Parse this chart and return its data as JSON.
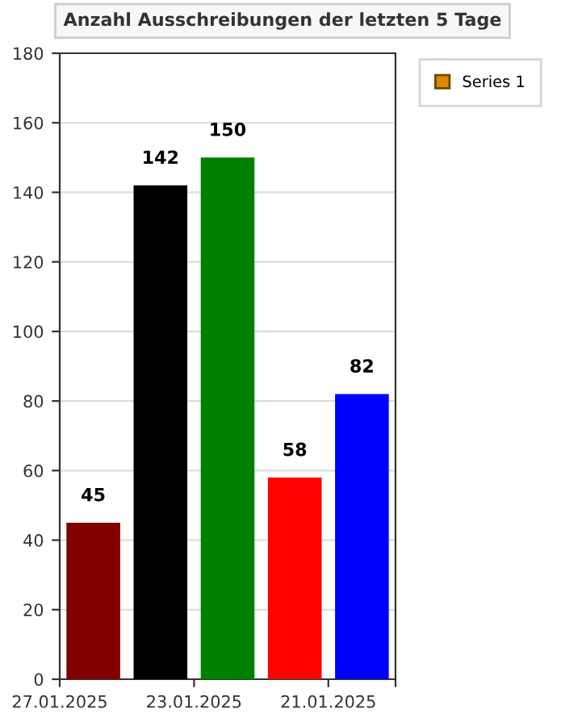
{
  "chart_data": {
    "type": "bar",
    "title": "Anzahl Ausschreibungen der letzten 5 Tage",
    "categories": [
      "27.01.2025",
      null,
      "23.01.2025",
      null,
      "21.01.2025"
    ],
    "series": [
      {
        "name": "Series 1",
        "color": "#dd8800",
        "colors": [
          "#800000",
          "#000000",
          "#008000",
          "#ff0000",
          "#0000ff"
        ],
        "values": [
          45,
          142,
          150,
          58,
          82
        ]
      }
    ],
    "ylim": [
      0,
      180
    ],
    "yticks": [
      0,
      20,
      40,
      60,
      80,
      100,
      120,
      140,
      160,
      180
    ],
    "grid": "y",
    "legend": "top right",
    "data_labels": true
  }
}
